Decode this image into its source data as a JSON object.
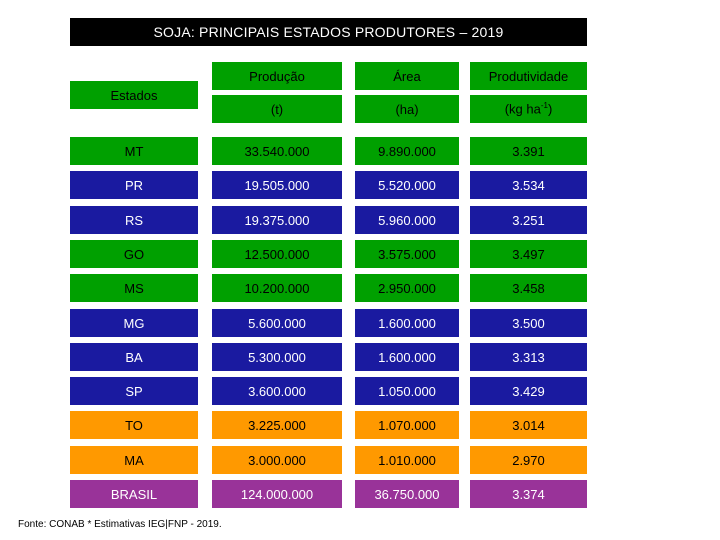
{
  "title": "SOJA: PRINCIPAIS ESTADOS PRODUTORES – 2019",
  "headers": {
    "estados": "Estados",
    "producao": "Produção",
    "producao_unit": "(t)",
    "area": "Área",
    "area_unit": "(ha)",
    "produtividade": "Produtividade",
    "produtividade_unit_prefix": "(kg ha",
    "produtividade_unit_sup": "-1",
    "produtividade_unit_suffix": ")"
  },
  "colors": {
    "title_bg": "#000000",
    "header_green": "#00a000",
    "green": "#00a000",
    "blue": "#1a1aa0",
    "orange": "#ff9900",
    "purple": "#993399"
  },
  "rows": [
    {
      "estado": "MT",
      "producao": "33.540.000",
      "area": "9.890.000",
      "produtividade": "3.391",
      "color": "green"
    },
    {
      "estado": "PR",
      "producao": "19.505.000",
      "area": "5.520.000",
      "produtividade": "3.534",
      "color": "blue"
    },
    {
      "estado": "RS",
      "producao": "19.375.000",
      "area": "5.960.000",
      "produtividade": "3.251",
      "color": "blue"
    },
    {
      "estado": "GO",
      "producao": "12.500.000",
      "area": "3.575.000",
      "produtividade": "3.497",
      "color": "green"
    },
    {
      "estado": "MS",
      "producao": "10.200.000",
      "area": "2.950.000",
      "produtividade": "3.458",
      "color": "green"
    },
    {
      "estado": "MG",
      "producao": "5.600.000",
      "area": "1.600.000",
      "produtividade": "3.500",
      "color": "blue"
    },
    {
      "estado": "BA",
      "producao": "5.300.000",
      "area": "1.600.000",
      "produtividade": "3.313",
      "color": "blue"
    },
    {
      "estado": "SP",
      "producao": "3.600.000",
      "area": "1.050.000",
      "produtividade": "3.429",
      "color": "blue"
    },
    {
      "estado": "TO",
      "producao": "3.225.000",
      "area": "1.070.000",
      "produtividade": "3.014",
      "color": "orange"
    },
    {
      "estado": "MA",
      "producao": "3.000.000",
      "area": "1.010.000",
      "produtividade": "2.970",
      "color": "orange"
    },
    {
      "estado": "BRASIL",
      "producao": "124.000.000",
      "area": "36.750.000",
      "produtividade": "3.374",
      "color": "purple"
    }
  ],
  "source": "Fonte: CONAB * Estimativas IEG|FNP - 2019."
}
